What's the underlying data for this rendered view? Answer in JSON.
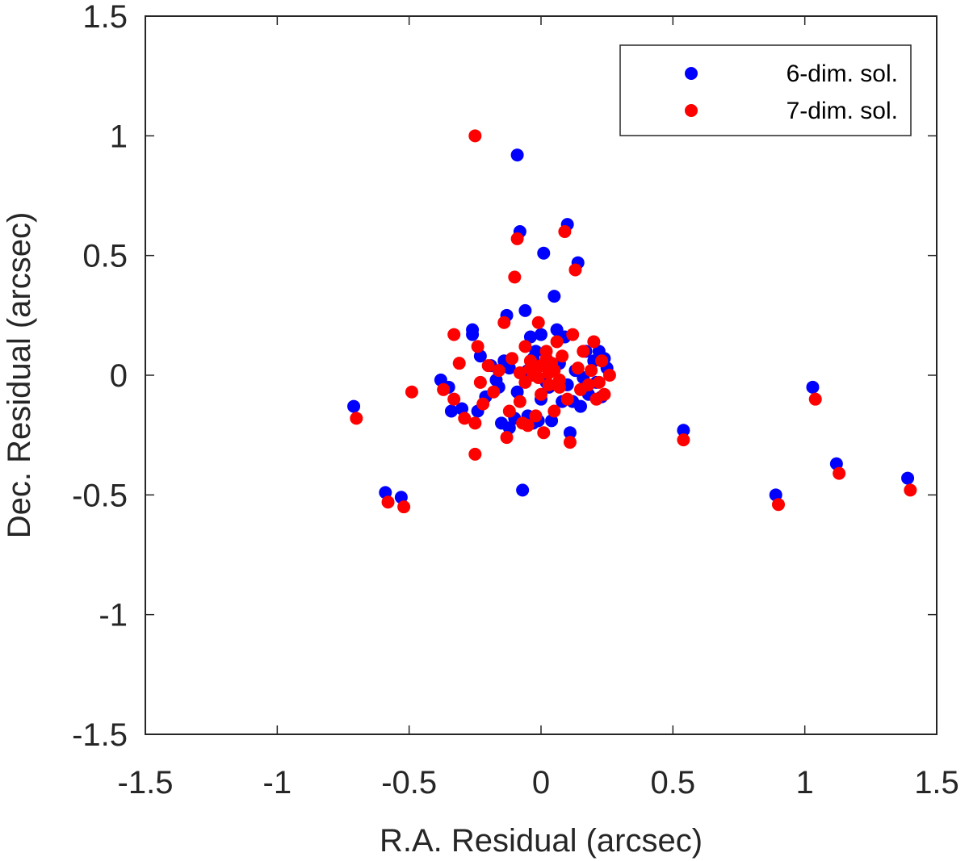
{
  "chart_data": {
    "type": "scatter",
    "title": "",
    "xlabel": "R.A. Residual (arcsec)",
    "ylabel": "Dec. Residual (arcsec)",
    "xlim": [
      -1.5,
      1.5
    ],
    "ylim": [
      -1.5,
      1.5
    ],
    "xticks": [
      -1.5,
      -1,
      -0.5,
      0,
      0.5,
      1,
      1.5
    ],
    "yticks": [
      -1.5,
      -1,
      -0.5,
      0,
      0.5,
      1,
      1.5
    ],
    "xtick_labels": [
      "-1.5",
      "-1",
      "-0.5",
      "0",
      "0.5",
      "1",
      "1.5"
    ],
    "ytick_labels": [
      "-1.5",
      "-1",
      "-0.5",
      "0",
      "0.5",
      "1",
      "1.5"
    ],
    "grid": false,
    "legend_position": "top-right",
    "series": [
      {
        "name": "6-dim. sol.",
        "color": "#0000ff",
        "points": [
          [
            -0.71,
            -0.13
          ],
          [
            -0.59,
            -0.49
          ],
          [
            -0.53,
            -0.51
          ],
          [
            -0.38,
            -0.02
          ],
          [
            -0.35,
            -0.05
          ],
          [
            -0.34,
            -0.15
          ],
          [
            -0.3,
            -0.14
          ],
          [
            -0.26,
            0.19
          ],
          [
            -0.26,
            0.17
          ],
          [
            -0.24,
            -0.15
          ],
          [
            -0.23,
            0.08
          ],
          [
            -0.21,
            -0.09
          ],
          [
            -0.19,
            0.04
          ],
          [
            -0.16,
            -0.05
          ],
          [
            -0.15,
            -0.2
          ],
          [
            -0.14,
            0.06
          ],
          [
            -0.13,
            0.25
          ],
          [
            -0.12,
            -0.22
          ],
          [
            -0.1,
            -0.18
          ],
          [
            -0.09,
            0.92
          ],
          [
            -0.08,
            0.6
          ],
          [
            -0.07,
            -0.48
          ],
          [
            -0.06,
            0.27
          ],
          [
            -0.05,
            -0.17
          ],
          [
            -0.04,
            0.16
          ],
          [
            -0.03,
            -0.2
          ],
          [
            -0.02,
            0.1
          ],
          [
            -0.01,
            -0.19
          ],
          [
            0.0,
            0.17
          ],
          [
            0.01,
            0.51
          ],
          [
            0.03,
            -0.05
          ],
          [
            0.04,
            -0.19
          ],
          [
            0.05,
            0.33
          ],
          [
            0.06,
            0.19
          ],
          [
            0.08,
            -0.11
          ],
          [
            0.09,
            0.16
          ],
          [
            0.1,
            0.63
          ],
          [
            0.11,
            -0.24
          ],
          [
            0.12,
            -0.11
          ],
          [
            0.14,
            0.47
          ],
          [
            0.15,
            -0.13
          ],
          [
            0.17,
            0.1
          ],
          [
            0.18,
            -0.08
          ],
          [
            0.2,
            0.06
          ],
          [
            0.21,
            -0.03
          ],
          [
            0.22,
            0.1
          ],
          [
            0.23,
            -0.09
          ],
          [
            0.24,
            0.07
          ],
          [
            0.25,
            0.03
          ],
          [
            -0.05,
            0.02
          ],
          [
            0.02,
            -0.03
          ],
          [
            0.07,
            0.05
          ],
          [
            -0.09,
            -0.07
          ],
          [
            0.13,
            0.02
          ],
          [
            -0.12,
            0.03
          ],
          [
            0.0,
            -0.1
          ],
          [
            0.1,
            -0.04
          ],
          [
            -0.03,
            0.07
          ],
          [
            0.16,
            -0.01
          ],
          [
            -0.17,
            -0.02
          ],
          [
            0.54,
            -0.23
          ],
          [
            0.89,
            -0.5
          ],
          [
            1.03,
            -0.05
          ],
          [
            1.12,
            -0.37
          ],
          [
            1.39,
            -0.43
          ]
        ]
      },
      {
        "name": "7-dim. sol.",
        "color": "#ff0000",
        "points": [
          [
            -0.7,
            -0.18
          ],
          [
            -0.58,
            -0.53
          ],
          [
            -0.52,
            -0.55
          ],
          [
            -0.49,
            -0.07
          ],
          [
            -0.37,
            -0.06
          ],
          [
            -0.33,
            0.17
          ],
          [
            -0.33,
            -0.1
          ],
          [
            -0.31,
            0.05
          ],
          [
            -0.29,
            -0.18
          ],
          [
            -0.25,
            1.0
          ],
          [
            -0.25,
            -0.33
          ],
          [
            -0.25,
            -0.2
          ],
          [
            -0.24,
            0.12
          ],
          [
            -0.23,
            -0.03
          ],
          [
            -0.22,
            -0.12
          ],
          [
            -0.2,
            0.04
          ],
          [
            -0.18,
            -0.07
          ],
          [
            -0.16,
            0.02
          ],
          [
            -0.14,
            0.22
          ],
          [
            -0.13,
            -0.26
          ],
          [
            -0.12,
            -0.15
          ],
          [
            -0.11,
            0.07
          ],
          [
            -0.1,
            0.41
          ],
          [
            -0.09,
            0.57
          ],
          [
            -0.08,
            -0.11
          ],
          [
            -0.07,
            -0.2
          ],
          [
            -0.06,
            0.12
          ],
          [
            -0.05,
            -0.21
          ],
          [
            -0.04,
            0.03
          ],
          [
            -0.02,
            -0.17
          ],
          [
            -0.01,
            0.22
          ],
          [
            0.0,
            -0.08
          ],
          [
            0.01,
            -0.24
          ],
          [
            0.02,
            0.1
          ],
          [
            0.03,
            -0.04
          ],
          [
            0.04,
            0.05
          ],
          [
            0.05,
            -0.15
          ],
          [
            0.06,
            0.14
          ],
          [
            0.07,
            -0.02
          ],
          [
            0.08,
            0.08
          ],
          [
            0.09,
            0.6
          ],
          [
            0.1,
            -0.1
          ],
          [
            0.11,
            -0.28
          ],
          [
            0.12,
            0.17
          ],
          [
            0.13,
            0.44
          ],
          [
            0.14,
            0.03
          ],
          [
            0.15,
            -0.06
          ],
          [
            0.16,
            0.1
          ],
          [
            0.18,
            -0.04
          ],
          [
            0.19,
            0.02
          ],
          [
            0.2,
            0.14
          ],
          [
            0.21,
            -0.1
          ],
          [
            0.22,
            -0.03
          ],
          [
            0.23,
            0.06
          ],
          [
            0.24,
            -0.08
          ],
          [
            0.26,
            0.0
          ],
          [
            -0.03,
            0.0
          ],
          [
            0.0,
            0.04
          ],
          [
            0.03,
            0.01
          ],
          [
            -0.06,
            -0.03
          ],
          [
            0.05,
            0.02
          ],
          [
            -0.01,
            -0.01
          ],
          [
            0.02,
            0.07
          ],
          [
            -0.04,
            0.06
          ],
          [
            0.07,
            -0.05
          ],
          [
            -0.08,
            0.01
          ],
          [
            0.54,
            -0.27
          ],
          [
            0.9,
            -0.54
          ],
          [
            1.04,
            -0.1
          ],
          [
            1.13,
            -0.41
          ],
          [
            1.4,
            -0.48
          ]
        ]
      }
    ]
  }
}
